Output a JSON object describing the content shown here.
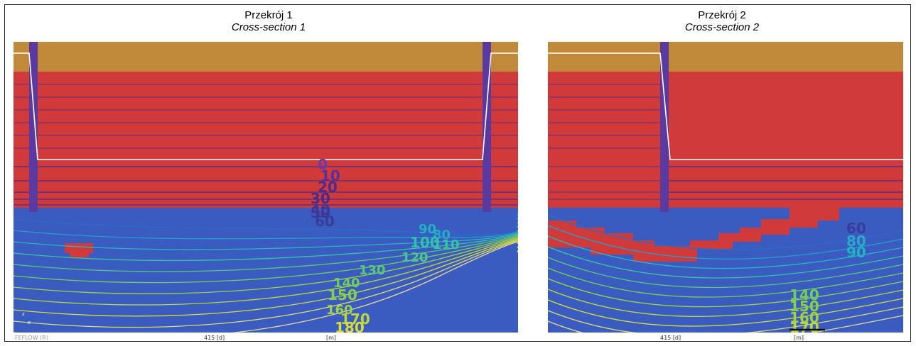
{
  "panels": [
    {
      "title_pl": "Przekrój 1",
      "title_en": "Cross-section 1",
      "status_left": "FEFLOW (R)",
      "status_time": "415 [d]",
      "status_unit": "[m]",
      "axis_labels": [
        "z",
        "x"
      ],
      "contours": [
        {
          "label": "0",
          "color": "#6a3aa8"
        },
        {
          "label": "10",
          "color": "#5a2e98"
        },
        {
          "label": "20",
          "color": "#4e2a8e"
        },
        {
          "label": "30",
          "color": "#4a2a8a"
        },
        {
          "label": "40",
          "color": "#4a3290"
        },
        {
          "label": "50",
          "color": "#403696"
        },
        {
          "label": "60",
          "color": "#3a3c9c"
        },
        {
          "label": "80",
          "color": "#2aa8c8"
        },
        {
          "label": "90",
          "color": "#22b0c4"
        },
        {
          "label": "100",
          "color": "#30c0b0"
        },
        {
          "label": "110",
          "color": "#38c4a0"
        },
        {
          "label": "120",
          "color": "#4ac68e"
        },
        {
          "label": "130",
          "color": "#58c878"
        },
        {
          "label": "140",
          "color": "#6ecc60"
        },
        {
          "label": "150",
          "color": "#84d04c"
        },
        {
          "label": "160",
          "color": "#9ed244"
        },
        {
          "label": "170",
          "color": "#bcd63e"
        },
        {
          "label": "180",
          "color": "#d8dc3a"
        }
      ]
    },
    {
      "title_pl": "Przekrój 2",
      "title_en": "Cross-section 2",
      "status_time": "415 [d]",
      "status_unit": "[m]",
      "contours": [
        {
          "label": "60",
          "color": "#3a3c9c"
        },
        {
          "label": "80",
          "color": "#2aa8c8"
        },
        {
          "label": "90",
          "color": "#22b0c4"
        },
        {
          "label": "140",
          "color": "#6ecc60"
        },
        {
          "label": "150",
          "color": "#84d04c"
        },
        {
          "label": "160",
          "color": "#9ed244"
        },
        {
          "label": "170",
          "color": "#bcd63e"
        }
      ]
    }
  ],
  "colors": {
    "top_layer": "#c08a3a",
    "clay_layer": "#d03a3a",
    "aquifer": "#3a5cc0",
    "well": "#5a3aa0",
    "boundary_line": "#ffffff"
  }
}
